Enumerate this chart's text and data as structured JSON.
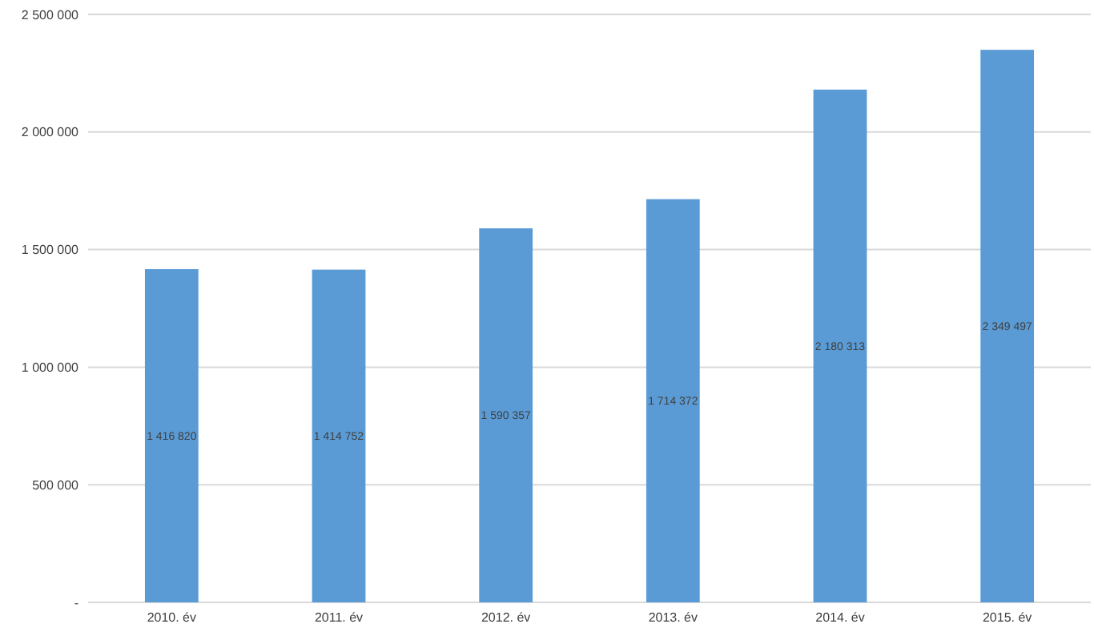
{
  "chart_data": {
    "type": "bar",
    "categories": [
      "2010. év",
      "2011. év",
      "2012. év",
      "2013. év",
      "2014. év",
      "2015. év"
    ],
    "values": [
      1416820,
      1414752,
      1590357,
      1714372,
      2180313,
      2349497
    ],
    "value_labels": [
      "1 416 820",
      "1 414 752",
      "1 590 357",
      "1 714 372",
      "2 180 313",
      "2 349 497"
    ],
    "color": "#5b9bd5",
    "ylim": [
      0,
      2500000
    ],
    "yticks": [
      {
        "value": 0,
        "label": "-"
      },
      {
        "value": 500000,
        "label": "500 000"
      },
      {
        "value": 1000000,
        "label": "1 000 000"
      },
      {
        "value": 1500000,
        "label": "1 500 000"
      },
      {
        "value": 2000000,
        "label": "2 000 000"
      },
      {
        "value": 2500000,
        "label": "2 500 000"
      }
    ],
    "grid": "y"
  }
}
